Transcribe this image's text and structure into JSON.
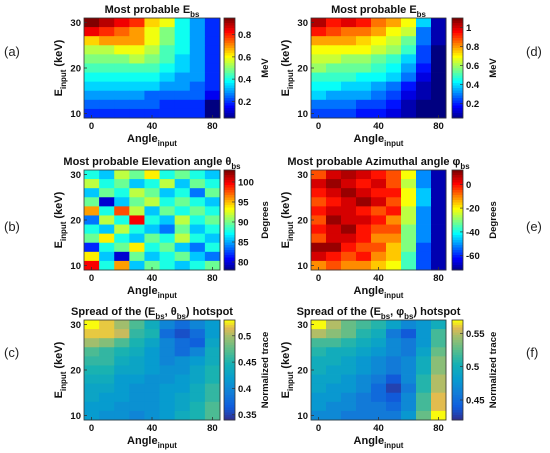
{
  "figure": {
    "panel_labels": [
      "(a)",
      "(b)",
      "(c)",
      "(d)",
      "(e)",
      "(f)"
    ]
  },
  "chart_data": [
    {
      "id": "a",
      "type": "heatmap",
      "title": "Most probable E_bs",
      "title_parts": [
        "Most probable E",
        "bs"
      ],
      "xlabel": "Angle_input",
      "ylabel": "E_input (keV)",
      "x_ticks": [
        "0",
        "40",
        "80"
      ],
      "y_ticks": [
        "10",
        "20",
        "30"
      ],
      "colorbar_label": "MeV",
      "colorbar_ticks": [
        "0.2",
        "0.4",
        "0.6",
        "0.8"
      ],
      "colorscale": "jet",
      "zlim": [
        0.05,
        0.95
      ],
      "x": [
        0,
        10,
        20,
        30,
        40,
        50,
        60,
        70,
        80
      ],
      "y": [
        30,
        28,
        26,
        24,
        22,
        20,
        18,
        16,
        14,
        12,
        10
      ],
      "values": [
        [
          0.95,
          0.9,
          0.85,
          0.8,
          0.65,
          0.6,
          0.4,
          0.3,
          0.2
        ],
        [
          0.85,
          0.8,
          0.75,
          0.7,
          0.6,
          0.5,
          0.4,
          0.3,
          0.2
        ],
        [
          0.65,
          0.7,
          0.7,
          0.7,
          0.6,
          0.5,
          0.4,
          0.3,
          0.2
        ],
        [
          0.55,
          0.55,
          0.6,
          0.6,
          0.55,
          0.45,
          0.4,
          0.3,
          0.2
        ],
        [
          0.5,
          0.5,
          0.5,
          0.55,
          0.5,
          0.45,
          0.35,
          0.3,
          0.2
        ],
        [
          0.45,
          0.45,
          0.45,
          0.45,
          0.45,
          0.4,
          0.35,
          0.3,
          0.2
        ],
        [
          0.4,
          0.4,
          0.4,
          0.4,
          0.4,
          0.35,
          0.3,
          0.3,
          0.2
        ],
        [
          0.35,
          0.35,
          0.35,
          0.35,
          0.35,
          0.3,
          0.3,
          0.25,
          0.2
        ],
        [
          0.3,
          0.3,
          0.3,
          0.3,
          0.25,
          0.25,
          0.25,
          0.25,
          0.15
        ],
        [
          0.25,
          0.25,
          0.25,
          0.25,
          0.25,
          0.2,
          0.2,
          0.2,
          0.05
        ],
        [
          0.2,
          0.2,
          0.2,
          0.2,
          0.2,
          0.2,
          0.2,
          0.2,
          0.05
        ]
      ]
    },
    {
      "id": "d",
      "type": "heatmap",
      "title": "Most probable E_bs",
      "title_parts": [
        "Most probable E",
        "bs"
      ],
      "xlabel": "Angle_input",
      "ylabel": "E_input (keV)",
      "x_ticks": [
        "0",
        "40",
        "80"
      ],
      "y_ticks": [
        "10",
        "20",
        "30"
      ],
      "colorbar_label": "MeV",
      "colorbar_ticks": [
        "0.2",
        "0.4",
        "0.6",
        "0.8",
        "1"
      ],
      "colorscale": "jet",
      "zlim": [
        0.05,
        1.1
      ],
      "x": [
        0,
        10,
        20,
        30,
        40,
        50,
        60,
        70,
        80
      ],
      "y": [
        30,
        28,
        26,
        24,
        22,
        20,
        18,
        16,
        14,
        12,
        10
      ],
      "values": [
        [
          1.05,
          0.95,
          1.0,
          0.95,
          0.85,
          0.8,
          0.7,
          0.4,
          0.1
        ],
        [
          0.95,
          0.9,
          0.85,
          0.85,
          0.8,
          0.7,
          0.65,
          0.3,
          0.1
        ],
        [
          0.8,
          0.8,
          0.8,
          0.75,
          0.7,
          0.65,
          0.55,
          0.3,
          0.1
        ],
        [
          0.7,
          0.7,
          0.7,
          0.7,
          0.65,
          0.6,
          0.5,
          0.25,
          0.05
        ],
        [
          0.65,
          0.65,
          0.6,
          0.6,
          0.55,
          0.5,
          0.4,
          0.25,
          0.05
        ],
        [
          0.6,
          0.55,
          0.55,
          0.55,
          0.5,
          0.45,
          0.35,
          0.2,
          0.05
        ],
        [
          0.5,
          0.5,
          0.5,
          0.45,
          0.45,
          0.4,
          0.3,
          0.15,
          0.05
        ],
        [
          0.45,
          0.45,
          0.4,
          0.4,
          0.35,
          0.3,
          0.2,
          0.1,
          0.05
        ],
        [
          0.4,
          0.35,
          0.35,
          0.35,
          0.3,
          0.25,
          0.15,
          0.1,
          0.05
        ],
        [
          0.3,
          0.3,
          0.3,
          0.25,
          0.25,
          0.2,
          0.1,
          0.05,
          0.05
        ],
        [
          0.25,
          0.25,
          0.25,
          0.2,
          0.2,
          0.15,
          0.1,
          0.05,
          0.05
        ]
      ]
    },
    {
      "id": "b",
      "type": "heatmap",
      "title": "Most probable Elevation angle θ_bs",
      "title_parts": [
        "Most probable Elevation angle ",
        "θ",
        "bs"
      ],
      "xlabel": "Angle_input",
      "ylabel": "E_input (keV)",
      "x_ticks": [
        "0",
        "40",
        "80"
      ],
      "y_ticks": [
        "10",
        "20",
        "30"
      ],
      "colorbar_label": "Degrees",
      "colorbar_ticks": [
        "80",
        "85",
        "90",
        "95",
        "100"
      ],
      "colorscale": "jet",
      "zlim": [
        78,
        103
      ],
      "x": [
        0,
        10,
        20,
        30,
        40,
        50,
        60,
        70,
        80
      ],
      "y": [
        30,
        28,
        26,
        24,
        22,
        20,
        18,
        16,
        14,
        12,
        10
      ],
      "values": [
        [
          88,
          86,
          92,
          90,
          94,
          88,
          90,
          88,
          86
        ],
        [
          92,
          88,
          90,
          86,
          88,
          92,
          86,
          90,
          88
        ],
        [
          86,
          90,
          88,
          92,
          90,
          86,
          88,
          84,
          90
        ],
        [
          90,
          80,
          86,
          90,
          92,
          88,
          90,
          88,
          86
        ],
        [
          96,
          88,
          98,
          92,
          86,
          90,
          88,
          90,
          88
        ],
        [
          84,
          92,
          88,
          100,
          88,
          86,
          92,
          88,
          90
        ],
        [
          88,
          86,
          92,
          88,
          86,
          84,
          90,
          86,
          88
        ],
        [
          90,
          94,
          88,
          86,
          90,
          88,
          92,
          88,
          86
        ],
        [
          82,
          88,
          90,
          94,
          88,
          90,
          86,
          84,
          88
        ],
        [
          94,
          86,
          80,
          90,
          86,
          88,
          90,
          86,
          84
        ],
        [
          100,
          88,
          96,
          86,
          90,
          88,
          86,
          88,
          90
        ]
      ]
    },
    {
      "id": "e",
      "type": "heatmap",
      "title": "Most probable Azimuthal angle φ_bs",
      "title_parts": [
        "Most probable Azimuthal angle ",
        "φ",
        "bs"
      ],
      "xlabel": "Angle_input",
      "ylabel": "E_input (keV)",
      "x_ticks": [
        "0",
        "40",
        "80"
      ],
      "y_ticks": [
        "10",
        "20",
        "30"
      ],
      "colorbar_label": "Degrees",
      "colorbar_ticks": [
        "0",
        "-20",
        "-40",
        "-60"
      ],
      "colorscale": "jet",
      "zlim": [
        -72,
        12
      ],
      "x": [
        0,
        10,
        20,
        30,
        40,
        50,
        60,
        70,
        80
      ],
      "y": [
        30,
        28,
        26,
        24,
        22,
        20,
        18,
        16,
        14,
        12,
        10
      ],
      "values": [
        [
          -5,
          5,
          8,
          5,
          0,
          -5,
          -20,
          -50,
          -68
        ],
        [
          5,
          10,
          5,
          0,
          5,
          -5,
          -25,
          -50,
          -68
        ],
        [
          0,
          5,
          10,
          5,
          0,
          0,
          -20,
          -45,
          -68
        ],
        [
          -5,
          0,
          5,
          10,
          5,
          -5,
          -20,
          -45,
          -68
        ],
        [
          0,
          5,
          5,
          0,
          -5,
          0,
          -25,
          -50,
          -68
        ],
        [
          -5,
          10,
          5,
          5,
          0,
          -10,
          -25,
          -50,
          -68
        ],
        [
          0,
          5,
          10,
          0,
          -5,
          -5,
          -30,
          -50,
          -68
        ],
        [
          -5,
          5,
          5,
          0,
          -10,
          -10,
          -30,
          -50,
          -68
        ],
        [
          10,
          10,
          0,
          -5,
          -5,
          -15,
          -30,
          -55,
          -68
        ],
        [
          5,
          0,
          -5,
          0,
          -10,
          -15,
          -35,
          -55,
          -68
        ],
        [
          -10,
          -5,
          -10,
          -10,
          -15,
          -20,
          -35,
          -55,
          -68
        ]
      ]
    },
    {
      "id": "c",
      "type": "heatmap",
      "title": "Spread of the (E_bs, θ_bs) hotspot",
      "title_parts": [
        "Spread of the (E",
        "bs",
        ", ",
        "θ",
        "bs",
        ") hotspot"
      ],
      "xlabel": "Angle_input",
      "ylabel": "E_input (keV)",
      "x_ticks": [
        "0",
        "40",
        "80"
      ],
      "y_ticks": [
        "10",
        "20",
        "30"
      ],
      "colorbar_label": "Normalized trace",
      "colorbar_ticks": [
        "0.35",
        "0.4",
        "0.45",
        "0.5"
      ],
      "colorscale": "parula",
      "zlim": [
        0.34,
        0.53
      ],
      "x": [
        0,
        10,
        20,
        30,
        40,
        50,
        60,
        70,
        80
      ],
      "y": [
        30,
        28,
        26,
        24,
        22,
        20,
        18,
        16,
        14,
        12,
        10
      ],
      "values": [
        [
          0.53,
          0.52,
          0.5,
          0.47,
          0.44,
          0.4,
          0.38,
          0.4,
          0.42
        ],
        [
          0.52,
          0.52,
          0.51,
          0.46,
          0.45,
          0.38,
          0.36,
          0.38,
          0.42
        ],
        [
          0.5,
          0.49,
          0.47,
          0.45,
          0.43,
          0.4,
          0.38,
          0.37,
          0.43
        ],
        [
          0.47,
          0.46,
          0.45,
          0.44,
          0.42,
          0.4,
          0.38,
          0.4,
          0.44
        ],
        [
          0.46,
          0.46,
          0.44,
          0.43,
          0.42,
          0.4,
          0.41,
          0.42,
          0.44
        ],
        [
          0.45,
          0.45,
          0.43,
          0.43,
          0.42,
          0.41,
          0.41,
          0.43,
          0.45
        ],
        [
          0.44,
          0.44,
          0.42,
          0.42,
          0.41,
          0.41,
          0.42,
          0.43,
          0.45
        ],
        [
          0.43,
          0.43,
          0.42,
          0.41,
          0.41,
          0.42,
          0.42,
          0.44,
          0.46
        ],
        [
          0.43,
          0.42,
          0.42,
          0.41,
          0.41,
          0.42,
          0.43,
          0.44,
          0.46
        ],
        [
          0.42,
          0.42,
          0.41,
          0.41,
          0.41,
          0.42,
          0.43,
          0.45,
          0.47
        ],
        [
          0.42,
          0.41,
          0.41,
          0.4,
          0.41,
          0.42,
          0.44,
          0.45,
          0.47
        ]
      ]
    },
    {
      "id": "f",
      "type": "heatmap",
      "title": "Spread of the (E_bs, φ_bs) hotspot",
      "title_parts": [
        "Spread of the (E",
        "bs",
        ", ",
        "φ",
        "bs",
        ") hotspot"
      ],
      "xlabel": "Angle_input",
      "ylabel": "E_input (keV)",
      "x_ticks": [
        "0",
        "40",
        "80"
      ],
      "y_ticks": [
        "10",
        "20",
        "30"
      ],
      "colorbar_label": "Normalized trace",
      "colorbar_ticks": [
        "0.45",
        "0.5",
        "0.55"
      ],
      "colorscale": "parula",
      "zlim": [
        0.42,
        0.57
      ],
      "x": [
        0,
        10,
        20,
        30,
        40,
        50,
        60,
        70,
        80
      ],
      "y": [
        30,
        28,
        26,
        24,
        22,
        20,
        18,
        16,
        14,
        12,
        10
      ],
      "values": [
        [
          0.57,
          0.55,
          0.53,
          0.52,
          0.51,
          0.49,
          0.47,
          0.48,
          0.5
        ],
        [
          0.55,
          0.54,
          0.53,
          0.51,
          0.5,
          0.46,
          0.44,
          0.48,
          0.52
        ],
        [
          0.52,
          0.52,
          0.51,
          0.5,
          0.49,
          0.47,
          0.46,
          0.48,
          0.52
        ],
        [
          0.51,
          0.5,
          0.5,
          0.49,
          0.48,
          0.47,
          0.46,
          0.49,
          0.53
        ],
        [
          0.5,
          0.5,
          0.49,
          0.48,
          0.47,
          0.46,
          0.47,
          0.5,
          0.54
        ],
        [
          0.5,
          0.49,
          0.49,
          0.48,
          0.47,
          0.46,
          0.47,
          0.5,
          0.54
        ],
        [
          0.49,
          0.49,
          0.48,
          0.47,
          0.46,
          0.44,
          0.47,
          0.51,
          0.55
        ],
        [
          0.49,
          0.48,
          0.48,
          0.47,
          0.45,
          0.43,
          0.46,
          0.51,
          0.55
        ],
        [
          0.48,
          0.48,
          0.47,
          0.46,
          0.45,
          0.44,
          0.47,
          0.52,
          0.56
        ],
        [
          0.48,
          0.47,
          0.47,
          0.46,
          0.46,
          0.45,
          0.47,
          0.52,
          0.56
        ],
        [
          0.47,
          0.47,
          0.46,
          0.46,
          0.46,
          0.46,
          0.48,
          0.53,
          0.57
        ]
      ]
    }
  ]
}
